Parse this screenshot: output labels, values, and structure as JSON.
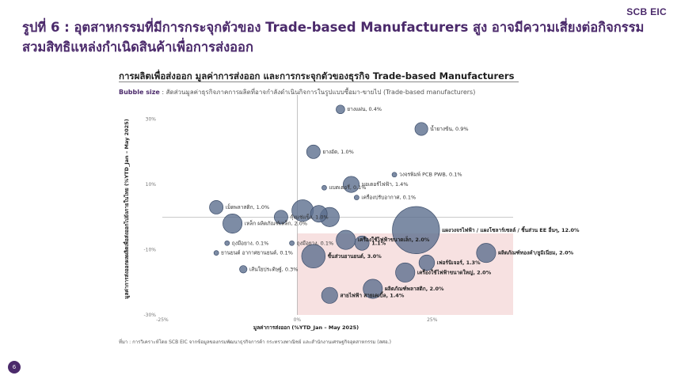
{
  "brand": "SCB EIC",
  "title": "รูปที่ 6 : อุตสาหกรรมที่มีการกระจุกตัวของ Trade-based Manufacturers สูง อาจมีความเสี่ยงต่อกิจกรรม สวมสิทธิแหล่งกำเนิดสินค้าเพื่อการส่งออก",
  "page_number": "6",
  "source": "ที่มา : การวิเคราะห์โดย SCB EIC จากข้อมูลของกรมพัฒนาธุรกิจการค้า กระทรวงพาณิชย์ และสำนักงานเศรษฐกิจอุตสาหกรรม (สศอ.)",
  "chart_data": {
    "type": "scatter",
    "title": "การผลิตเพื่อส่งออก มูลค่าการส่งออก และการกระจุกตัวของธุรกิจ Trade-based Manufacturers",
    "bubble_size_label": "Bubble size",
    "bubble_size_desc": ": สัดส่วนมูลค่าธุรกิจภาคการผลิตที่อาจกำลังดำเนินกิจการในรูปแบบซื้อมา-ขายไป (Trade-based manufacturers)",
    "xlabel": "มูลค่าการส่งออก (%YTD_Jan – May 2025)",
    "ylabel": "มูลค่าการส่งออกผลผลิตเพื่อส่งออกไปยังภายในไทย (%YTD_Jan – May 2025)",
    "xlim": [
      -25,
      40
    ],
    "ylim": [
      -30,
      35
    ],
    "x_ticks": [
      "-25%",
      "0%",
      "25%"
    ],
    "y_ticks": [
      "30%",
      "10%",
      "-10%",
      "-30%"
    ],
    "highlight_region": {
      "x": [
        0,
        40
      ],
      "y": [
        -30,
        -5
      ]
    },
    "bubble_color": "#5c6f8f",
    "highlight_color": "#f6dcdc",
    "points": [
      {
        "label": "ยางแผ่น, 0.4%",
        "x": 8,
        "y": 33,
        "size": 0.4,
        "bold": false
      },
      {
        "label": "น้ำยางข้น, 0.9%",
        "x": 23,
        "y": 27,
        "size": 0.9,
        "bold": false
      },
      {
        "label": "ยางอัด, 1.0%",
        "x": 3,
        "y": 20,
        "size": 1.0,
        "bold": false
      },
      {
        "label": "วงจรพิมพ์ PCB PWB, 0.1%",
        "x": 18,
        "y": 13,
        "size": 0.1,
        "bold": false
      },
      {
        "label": "มอเตอร์ไฟฟ้า, 1.4%",
        "x": 10,
        "y": 10,
        "size": 1.4,
        "bold": false
      },
      {
        "label": "แบตเตอรี่, 0.1%",
        "x": 5,
        "y": 9,
        "size": 0.1,
        "bold": false
      },
      {
        "label": "เครื่องปรับอากาศ, 0.1%",
        "x": 11,
        "y": 6,
        "size": 0.1,
        "bold": false
      },
      {
        "label": "เม็ดพลาสติก, 1.0%",
        "x": -15,
        "y": 3,
        "size": 1.0,
        "bold": false
      },
      {
        "label": "เหล็ก ผลิตภัณฑ์เหล็ก, 2.0%",
        "x": -12,
        "y": -2,
        "size": 2.0,
        "bold": false
      },
      {
        "label": "ถุงมือยาง, 0.1%",
        "x": -13,
        "y": -8,
        "size": 0.1,
        "bold": false
      },
      {
        "label": "ยานยนต์ อากาศยานยนต์, 0.1%",
        "x": -15,
        "y": -11,
        "size": 0.1,
        "bold": false
      },
      {
        "label": "กุ้งแช่แข็ง, 1.0%",
        "x": -3,
        "y": 0,
        "size": 1.0,
        "bold": false
      },
      {
        "label": "ถุงมือยาง, 0.1%",
        "x": -1,
        "y": -8,
        "size": 0.1,
        "bold": false
      },
      {
        "label": "",
        "x": 1,
        "y": 2,
        "size": 2.5,
        "bold": false
      },
      {
        "label": "",
        "x": 4,
        "y": 1,
        "size": 1.5,
        "bold": false
      },
      {
        "label": "",
        "x": 6,
        "y": 0,
        "size": 2.0,
        "bold": false
      },
      {
        "label": "ชิ้นส่วนยานยนต์, 3.0%",
        "x": 3,
        "y": -12,
        "size": 3.0,
        "bold": true
      },
      {
        "label": "เครื่องใช้ไฟฟ้าขนาดเล็ก, 2.0%",
        "x": 9,
        "y": -7,
        "size": 2.0,
        "bold": true
      },
      {
        "label": "1.1%",
        "x": 12,
        "y": -8,
        "size": 1.1,
        "bold": true
      },
      {
        "label": "แผงวงจรไฟฟ้า / แผงโซลาร์เซลล์ / ชิ้นส่วน EE อื่นๆ, 12.0%",
        "x": 22,
        "y": -4,
        "size": 12.0,
        "bold": true
      },
      {
        "label": "เฟอร์นิเจอร์, 1.3%",
        "x": 24,
        "y": -14,
        "size": 1.3,
        "bold": true
      },
      {
        "label": "ผลิตภัณฑ์ทองคำ/ยูมิเนียม, 2.0%",
        "x": 35,
        "y": -11,
        "size": 2.0,
        "bold": true
      },
      {
        "label": "เครื่องใช้ไฟฟ้าขนาดใหญ่, 2.0%",
        "x": 20,
        "y": -17,
        "size": 2.0,
        "bold": true
      },
      {
        "label": "สายไฟฟ้า สายเคเบิ้ล, 1.4%",
        "x": 6,
        "y": -24,
        "size": 1.4,
        "bold": true
      },
      {
        "label": "ผลิตภัณฑ์พลาสติก, 2.0%",
        "x": 14,
        "y": -22,
        "size": 2.0,
        "bold": true
      },
      {
        "label": "เส้นใยประดิษฐ์, 0.3%",
        "x": -10,
        "y": -16,
        "size": 0.3,
        "bold": false
      }
    ]
  }
}
